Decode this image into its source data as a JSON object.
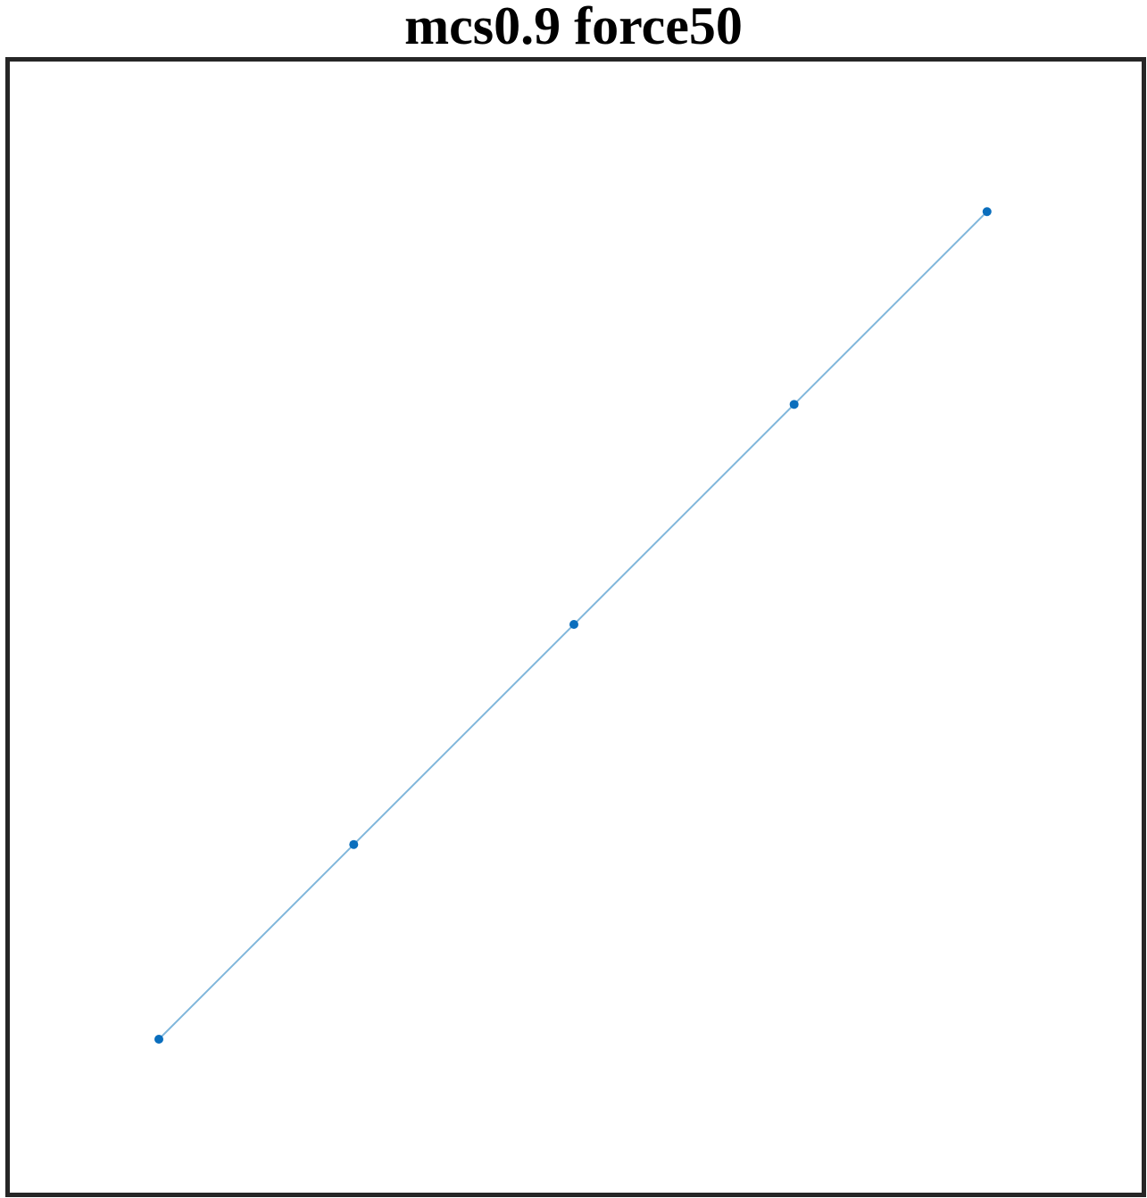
{
  "title": "mcs0.9 force50",
  "colors": {
    "edge": "#7fb6db",
    "node": "#0a6ebd",
    "frame": "#262626"
  },
  "graph": {
    "nodes": [
      {
        "id": 1,
        "x": 0.0,
        "y": 0.0
      },
      {
        "id": 2,
        "x": 1.0,
        "y": 1.0
      },
      {
        "id": 3,
        "x": 2.13,
        "y": 2.13
      },
      {
        "id": 4,
        "x": 3.26,
        "y": 3.26
      },
      {
        "id": 5,
        "x": 4.25,
        "y": 4.25
      }
    ],
    "edges": [
      [
        1,
        2
      ],
      [
        2,
        3
      ],
      [
        3,
        4
      ],
      [
        4,
        5
      ]
    ]
  }
}
